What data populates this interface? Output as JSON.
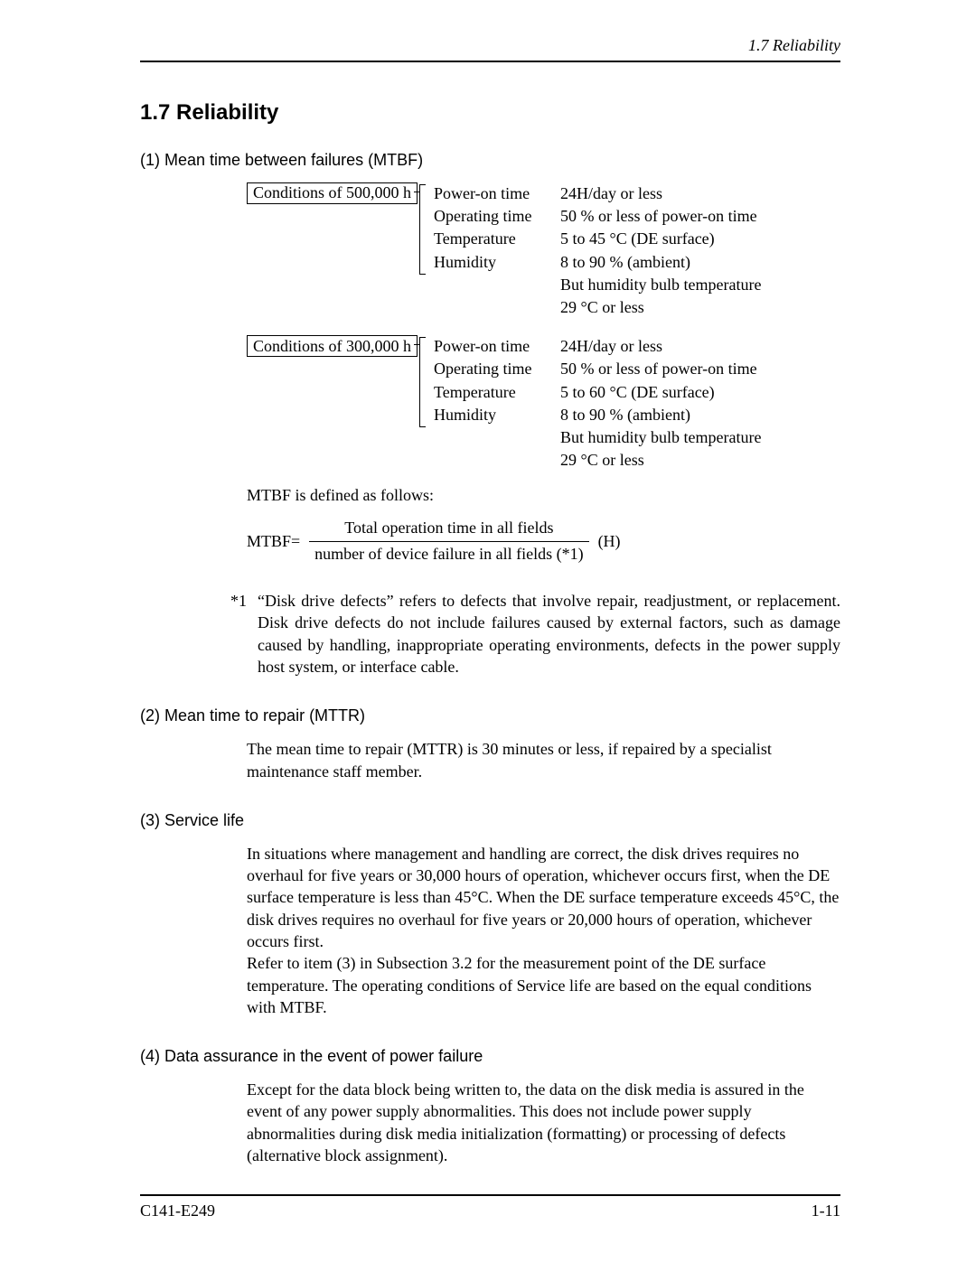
{
  "running_head": "1.7  Reliability",
  "section_title": "1.7  Reliability",
  "sub1": "(1)  Mean time between failures (MTBF)",
  "cond500": {
    "label": "Conditions of 500,000 h",
    "rows": [
      {
        "k": "Power-on time",
        "v": "24H/day or less"
      },
      {
        "k": "Operating time",
        "v": "50 % or less of power-on time"
      },
      {
        "k": "Temperature",
        "v": "5 to 45 °C (DE surface)"
      },
      {
        "k": "Humidity",
        "v": "8 to 90 % (ambient)"
      }
    ],
    "extra1": "But humidity bulb temperature",
    "extra2": "29 °C or less"
  },
  "cond300": {
    "label": "Conditions of 300,000 h",
    "rows": [
      {
        "k": "Power-on time",
        "v": "24H/day or less"
      },
      {
        "k": "Operating time",
        "v": "50 % or less of power-on time"
      },
      {
        "k": "Temperature",
        "v": "5 to 60 °C (DE surface)"
      },
      {
        "k": "Humidity",
        "v": "8 to 90 % (ambient)"
      }
    ],
    "extra1": "But humidity bulb temperature",
    "extra2": "29 °C or less"
  },
  "mtbf_def": "MTBF is defined as follows:",
  "formula": {
    "lhs": "MTBF=",
    "num": "Total operation time in all fields",
    "den": "number of device failure in all fields (*1)",
    "unit": "(H)"
  },
  "note1_star": "*1",
  "note1_text": "“Disk drive defects” refers to defects that involve repair, readjustment, or replacement.  Disk drive defects do not include failures caused by external factors, such as damage caused by handling, inappropriate operating environments, defects in the power supply host system, or interface cable.",
  "sub2": "(2)  Mean time to repair (MTTR)",
  "mttr_text": "The mean time to repair (MTTR) is 30 minutes or less, if repaired by a specialist maintenance staff member.",
  "sub3": "(3)  Service life",
  "service_text": "In situations where management and handling are correct, the disk drives requires no overhaul for five years or 30,000 hours of operation, whichever occurs first, when the DE surface temperature is less than 45°C.  When the DE surface temperature exceeds 45°C, the disk drives requires no overhaul for five years or 20,000 hours of operation, whichever occurs first.\nRefer to item (3) in Subsection 3.2 for the measurement point of the DE surface temperature.  The operating conditions of Service life are based on the equal conditions with MTBF.",
  "sub4": "(4)  Data assurance in the event of power failure",
  "data_assurance_text": "Except for the data block being written to, the data on the disk media is assured in the event of any power supply abnormalities.  This does not include power supply abnormalities during disk media initialization (formatting) or processing of defects (alternative block assignment).",
  "footer_left": "C141-E249",
  "footer_right": "1-11"
}
